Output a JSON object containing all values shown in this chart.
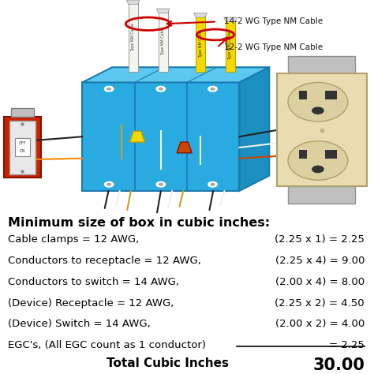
{
  "title": "Minimum size of box in cubic inches:",
  "rows": [
    {
      "left": "Cable clamps = 12 AWG,",
      "right": "(2.25 x 1) = 2.25"
    },
    {
      "left": "Conductors to receptacle = 12 AWG,",
      "right": "(2.25 x 4) = 9.00"
    },
    {
      "left": "Conductors to switch = 14 AWG,",
      "right": "(2.00 x 4) = 8.00"
    },
    {
      "left": "(Device) Receptacle = 12 AWG,",
      "right": "(2.25 x 2) = 4.50"
    },
    {
      "left": "(Device) Switch = 14 AWG,",
      "right": "(2.00 x 2) = 4.00"
    },
    {
      "left": "EGC's, (All EGC count as 1 conductor)",
      "right": "= 2.25"
    }
  ],
  "total_label": "Total Cubic Inches",
  "total_value": "30.00",
  "bg_color": "#ffffff",
  "text_color": "#000000",
  "title_fontsize": 11.5,
  "row_fontsize": 9.5,
  "total_fontsize": 11,
  "label_14": "14-2 WG Type NM Cable",
  "label_12": "12-2 WG Type NM Cable",
  "box_blue": "#29abe2",
  "box_blue_top": "#5cc8f0",
  "box_blue_right": "#1a8fc0",
  "box_edge": "#1a7aad",
  "cable_white": "#f5f5f0",
  "cable_yellow": "#f5d800",
  "arrow_red": "#cc0000",
  "wire_gold": "#c8a020",
  "wire_black": "#222222",
  "wire_white": "#f0f0f0",
  "outlet_cream": "#e8ddb0",
  "outlet_gray": "#c8c8c8",
  "switch_red": "#cc2200",
  "switch_plate": "#e8e8e8"
}
